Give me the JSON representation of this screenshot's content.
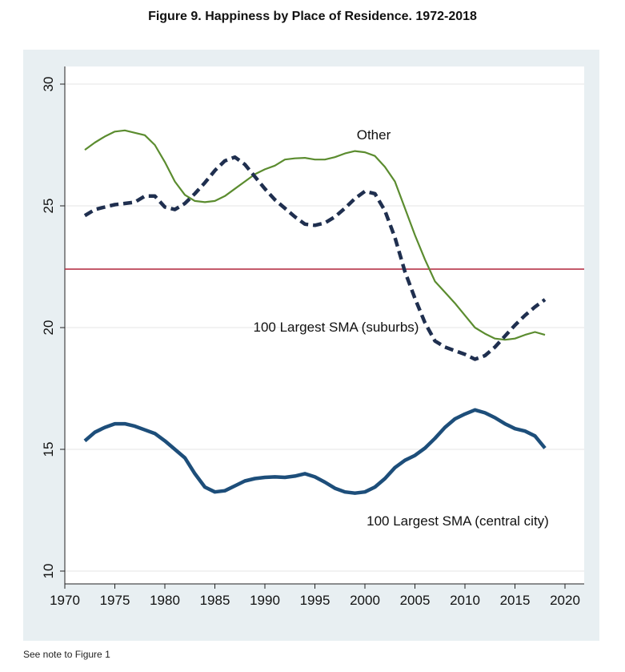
{
  "title": "Figure 9.  Happiness by Place of Residence. 1972-2018",
  "note": "See note to Figure 1",
  "chart_data": {
    "type": "line",
    "title": "Figure 9.  Happiness by Place of Residence. 1972-2018",
    "xlabel": "",
    "ylabel": "",
    "xlim": [
      1970,
      2020
    ],
    "ylim": [
      10,
      30
    ],
    "xticks": [
      1970,
      1975,
      1980,
      1985,
      1990,
      1995,
      2000,
      2005,
      2010,
      2015,
      2020
    ],
    "yticks": [
      10,
      15,
      20,
      25,
      30
    ],
    "grid": true,
    "legend": "none (direct labels)",
    "reference_line": 22.4,
    "colors": {
      "background": "#e8eff2",
      "plot_area": "#ffffff",
      "grid": "#e6e6e6",
      "reference_line": "#b0243a",
      "other": "#5b8c2f",
      "suburbs": "#1f2f4f",
      "central_city": "#1d4e7a"
    },
    "x": [
      1972,
      1973,
      1974,
      1975,
      1976,
      1977,
      1978,
      1979,
      1980,
      1981,
      1982,
      1983,
      1984,
      1985,
      1986,
      1987,
      1988,
      1989,
      1990,
      1991,
      1992,
      1993,
      1994,
      1995,
      1996,
      1997,
      1998,
      1999,
      2000,
      2001,
      2002,
      2003,
      2004,
      2005,
      2006,
      2007,
      2008,
      2009,
      2010,
      2011,
      2012,
      2013,
      2014,
      2015,
      2016,
      2017,
      2018
    ],
    "series": [
      {
        "name": "Other",
        "style": "solid-thin",
        "values": [
          27.3,
          27.6,
          27.85,
          28.05,
          28.1,
          28.0,
          27.9,
          27.5,
          26.8,
          26.0,
          25.45,
          25.2,
          25.15,
          25.2,
          25.4,
          25.7,
          26.0,
          26.3,
          26.5,
          26.65,
          26.9,
          26.95,
          26.97,
          26.9,
          26.9,
          27.0,
          27.15,
          27.25,
          27.2,
          27.05,
          26.6,
          26.0,
          24.9,
          23.8,
          22.8,
          21.9,
          21.45,
          21.0,
          20.5,
          20.0,
          19.75,
          19.55,
          19.5,
          19.55,
          19.7,
          19.82,
          19.7
        ]
      },
      {
        "name": "100 Largest SMA (suburbs)",
        "style": "dashed",
        "values": [
          24.6,
          24.85,
          24.95,
          25.05,
          25.1,
          25.15,
          25.4,
          25.4,
          24.95,
          24.85,
          25.1,
          25.5,
          25.95,
          26.45,
          26.85,
          27.0,
          26.7,
          26.2,
          25.7,
          25.25,
          24.9,
          24.55,
          24.25,
          24.2,
          24.3,
          24.55,
          24.9,
          25.3,
          25.6,
          25.5,
          24.8,
          23.7,
          22.3,
          21.2,
          20.2,
          19.45,
          19.2,
          19.05,
          18.9,
          18.7,
          18.85,
          19.2,
          19.65,
          20.1,
          20.5,
          20.85,
          21.15
        ]
      },
      {
        "name": "100 Largest SMA (central city)",
        "style": "solid-thick",
        "values": [
          15.35,
          15.7,
          15.9,
          16.05,
          16.05,
          15.95,
          15.8,
          15.65,
          15.35,
          15.0,
          14.65,
          14.0,
          13.45,
          13.25,
          13.3,
          13.5,
          13.7,
          13.8,
          13.85,
          13.87,
          13.85,
          13.9,
          14.0,
          13.87,
          13.65,
          13.4,
          13.25,
          13.2,
          13.25,
          13.45,
          13.8,
          14.25,
          14.55,
          14.75,
          15.05,
          15.45,
          15.9,
          16.25,
          16.45,
          16.62,
          16.5,
          16.3,
          16.05,
          15.85,
          15.75,
          15.55,
          15.05
        ]
      }
    ],
    "annotations": [
      "Other",
      "100 Largest SMA (suburbs)",
      "100 Largest SMA (central city)"
    ]
  }
}
